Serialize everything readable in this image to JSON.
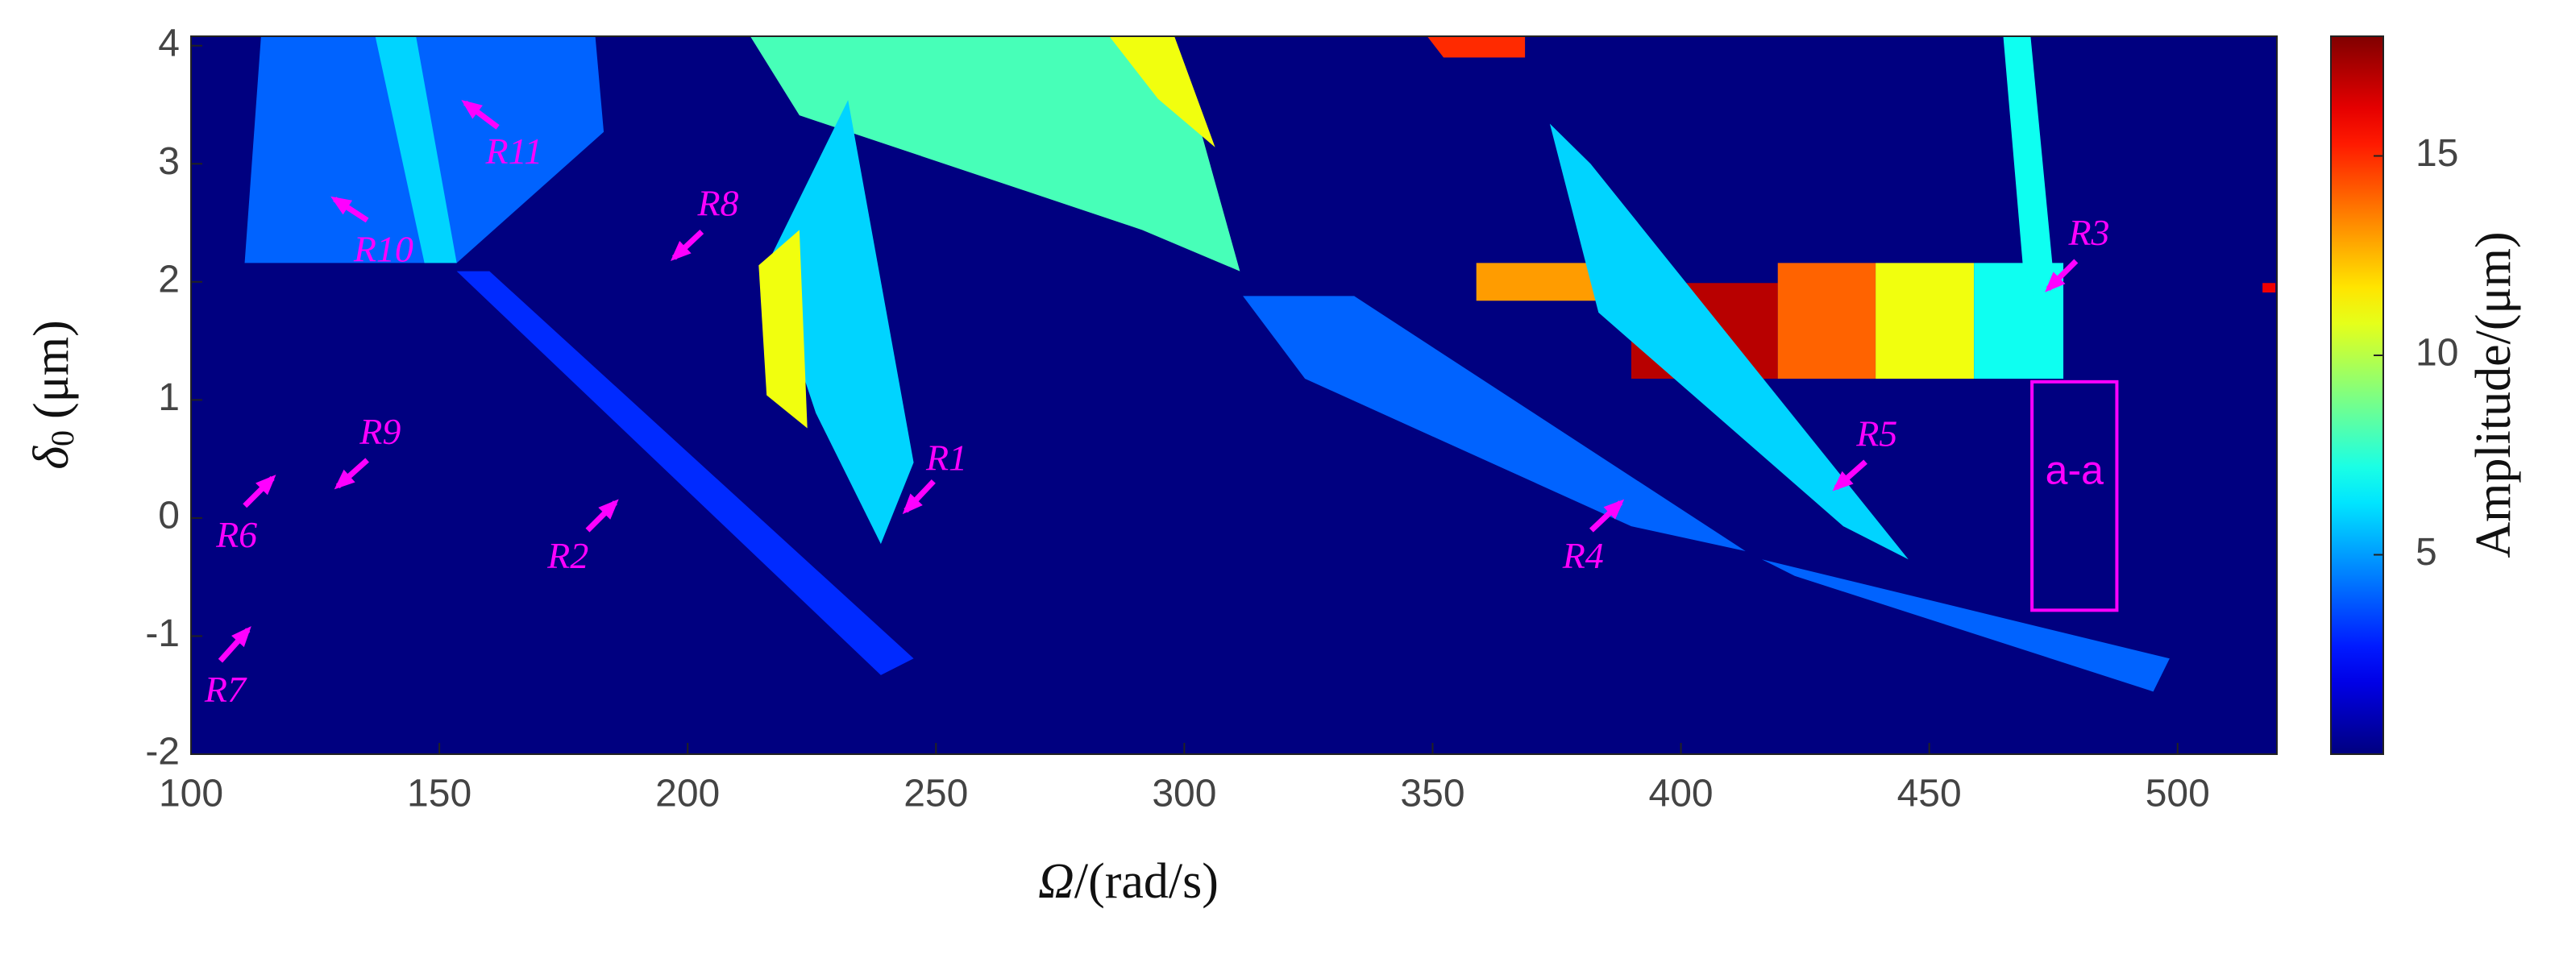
{
  "chart_data": {
    "type": "heatmap",
    "xlabel_symbol": "Ω",
    "xlabel_unit": "/(rad/s)",
    "ylabel_symbol": "δ",
    "ylabel_subscript": "0",
    "ylabel_unit": "(μm)",
    "colorbar_label": "Amplitude/(μm)",
    "xlim": [
      100,
      520
    ],
    "xticks": [
      100,
      150,
      200,
      250,
      300,
      350,
      400,
      450,
      500
    ],
    "ylim": [
      -2,
      4.08
    ],
    "yticks": [
      -2,
      -1,
      0,
      1,
      2,
      3,
      4
    ],
    "clim": [
      0,
      18
    ],
    "cticks": [
      5,
      10,
      15
    ],
    "colormap": "jet",
    "regions": [
      {
        "x": [
          114.1,
          181.4,
          183.1,
          153.5,
          110.8
        ],
        "y": [
          4.08,
          4.08,
          3.27,
          2.16,
          2.16
        ],
        "value": 4
      },
      {
        "x": [
          137.1,
          145.3,
          153.5,
          147
        ],
        "y": [
          4.08,
          4.08,
          2.16,
          2.16
        ],
        "value": 6
      },
      {
        "x": [
          153.5,
          160.1,
          245.5,
          238.9
        ],
        "y": [
          2.09,
          2.09,
          -1.19,
          -1.33
        ],
        "value": 3
      },
      {
        "x": [
          212.6,
          298,
          311.2,
          291.5,
          222.5
        ],
        "y": [
          4.08,
          4.08,
          2.09,
          2.44,
          3.41
        ],
        "value": 8
      },
      {
        "x": [
          284.9,
          298,
          306.2,
          294.7
        ],
        "y": [
          4.08,
          4.08,
          3.14,
          3.55
        ],
        "value": 11
      },
      {
        "x": [
          215.9,
          232.3,
          245.5,
          238.9,
          225.8
        ],
        "y": [
          2.14,
          3.54,
          0.47,
          -0.22,
          0.89
        ],
        "value": 6
      },
      {
        "x": [
          214.3,
          222.5,
          224.1,
          215.9
        ],
        "y": [
          2.14,
          2.44,
          0.76,
          1.04
        ],
        "value": 11
      },
      {
        "x": [
          311.8,
          334.2,
          413,
          390,
          324.3
        ],
        "y": [
          1.88,
          1.88,
          -0.28,
          -0.07,
          1.18
        ],
        "value": 4
      },
      {
        "x": [
          416.3,
          498.4,
          495.1,
          422.9
        ],
        "y": [
          -0.35,
          -1.19,
          -1.47,
          -0.49
        ],
        "value": 4
      },
      {
        "x": [
          348.9,
          368.6,
          368.6,
          352.2
        ],
        "y": [
          4.08,
          4.08,
          3.9,
          3.9
        ],
        "value": 15
      },
      {
        "x": [
          358.8,
          390,
          390,
          358.8
        ],
        "y": [
          2.16,
          2.16,
          1.84,
          1.84
        ],
        "value": 13
      },
      {
        "x": [
          390,
          419.5,
          419.5,
          390
        ],
        "y": [
          1.99,
          1.99,
          1.18,
          1.18
        ],
        "value": 17
      },
      {
        "x": [
          419.5,
          439.2,
          439.2,
          419.5
        ],
        "y": [
          2.16,
          2.16,
          1.18,
          1.18
        ],
        "value": 14
      },
      {
        "x": [
          439.2,
          459,
          459,
          439.2
        ],
        "y": [
          2.16,
          2.16,
          1.18,
          1.18
        ],
        "value": 11
      },
      {
        "x": [
          459,
          477,
          477,
          459
        ],
        "y": [
          2.16,
          2.16,
          1.18,
          1.18
        ],
        "value": 7
      },
      {
        "x": [
          373.6,
          381.8,
          445.8,
          432.7,
          383.4
        ],
        "y": [
          3.34,
          3.0,
          -0.35,
          -0.07,
          1.74
        ],
        "value": 6
      },
      {
        "x": [
          464.9,
          470.4,
          477,
          468.8
        ],
        "y": [
          4.08,
          4.08,
          1.18,
          2.16
        ],
        "value": 7
      },
      {
        "x": [
          517.1,
          519.7,
          519.7,
          517.1
        ],
        "y": [
          1.99,
          1.99,
          1.91,
          1.91
        ],
        "value": 16
      }
    ],
    "annotations": [
      "R1",
      "R2",
      "R3",
      "R4",
      "R5",
      "R6",
      "R7",
      "R8",
      "R9",
      "R10",
      "R11"
    ],
    "box_label": "a-a"
  }
}
